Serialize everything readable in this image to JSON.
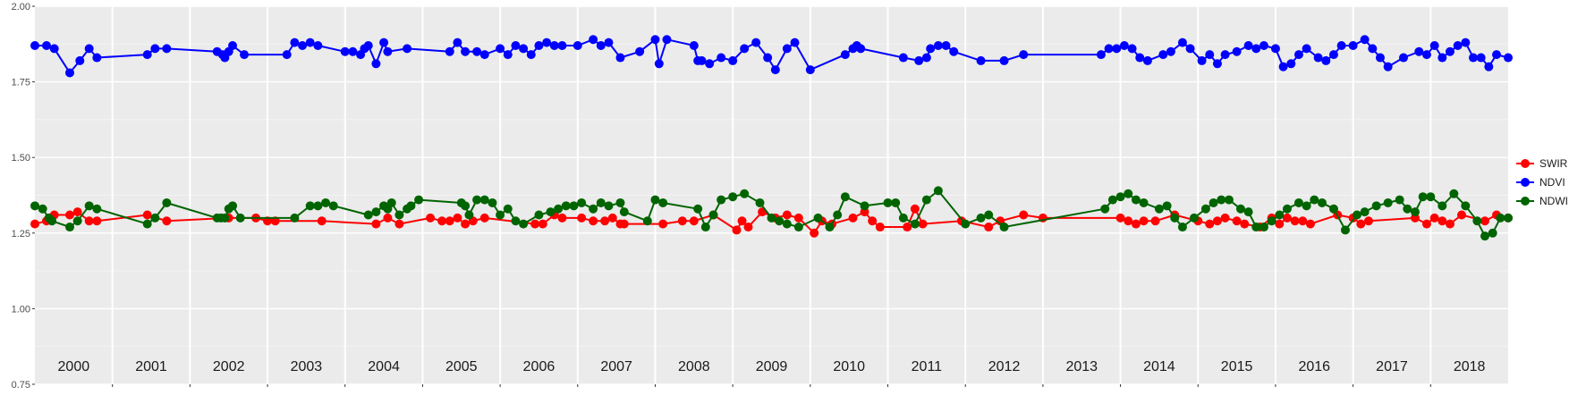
{
  "chart_data": {
    "type": "line",
    "title": "",
    "xlabel": "",
    "ylabel": "",
    "ylim": [
      0.75,
      2.0
    ],
    "xlim": [
      1999.5,
      2018.5
    ],
    "y_ticks": [
      "0.75",
      "1.00",
      "1.25",
      "1.50",
      "1.75",
      "2.00"
    ],
    "year_labels": [
      "2000",
      "2001",
      "2002",
      "2003",
      "2004",
      "2005",
      "2006",
      "2007",
      "2008",
      "2009",
      "2010",
      "2011",
      "2012",
      "2013",
      "2014",
      "2015",
      "2016",
      "2017",
      "2018"
    ],
    "grid": true,
    "legend_position": "right",
    "series": [
      {
        "name": "SWIR",
        "color": "#ff0000",
        "x": [
          1999.5,
          1999.65,
          1999.75,
          1999.95,
          2000.05,
          2000.2,
          2000.3,
          2000.95,
          2001.2,
          2002.0,
          2002.35,
          2002.5,
          2002.6,
          2003.2,
          2003.9,
          2004.05,
          2004.2,
          2004.6,
          2004.75,
          2004.85,
          2004.95,
          2005.05,
          2005.15,
          2005.3,
          2005.95,
          2006.05,
          2006.2,
          2006.3,
          2006.55,
          2006.7,
          2006.85,
          2006.95,
          2007.05,
          2007.1,
          2007.6,
          2007.85,
          2008.0,
          2008.25,
          2008.55,
          2008.62,
          2008.7,
          2008.88,
          2009.05,
          2009.2,
          2009.35,
          2009.55,
          2009.65,
          2009.78,
          2010.05,
          2010.2,
          2010.3,
          2010.4,
          2010.75,
          2010.85,
          2010.95,
          2011.45,
          2011.8,
          2011.95,
          2012.25,
          2012.5,
          2013.5,
          2013.6,
          2013.7,
          2013.8,
          2013.95,
          2014.2,
          2014.5,
          2014.65,
          2014.75,
          2014.85,
          2015.0,
          2015.1,
          2015.3,
          2015.45,
          2015.55,
          2015.65,
          2015.75,
          2015.85,
          2015.95,
          2016.3,
          2016.5,
          2016.6,
          2016.7,
          2017.3,
          2017.45,
          2017.55,
          2017.65,
          2017.75,
          2017.9,
          2018.2,
          2018.35,
          2018.5
        ],
        "values": [
          1.28,
          1.29,
          1.31,
          1.31,
          1.32,
          1.29,
          1.29,
          1.31,
          1.29,
          1.3,
          1.3,
          1.29,
          1.29,
          1.29,
          1.28,
          1.3,
          1.28,
          1.3,
          1.29,
          1.29,
          1.3,
          1.28,
          1.29,
          1.3,
          1.28,
          1.28,
          1.31,
          1.3,
          1.3,
          1.29,
          1.29,
          1.3,
          1.28,
          1.28,
          1.28,
          1.29,
          1.29,
          1.31,
          1.26,
          1.29,
          1.27,
          1.32,
          1.3,
          1.31,
          1.3,
          1.25,
          1.29,
          1.28,
          1.3,
          1.32,
          1.29,
          1.27,
          1.27,
          1.33,
          1.28,
          1.29,
          1.27,
          1.29,
          1.31,
          1.3,
          1.3,
          1.29,
          1.28,
          1.29,
          1.29,
          1.31,
          1.29,
          1.28,
          1.29,
          1.3,
          1.29,
          1.28,
          1.27,
          1.3,
          1.28,
          1.3,
          1.29,
          1.29,
          1.28,
          1.31,
          1.3,
          1.28,
          1.29,
          1.3,
          1.28,
          1.3,
          1.29,
          1.28,
          1.31,
          1.29,
          1.31,
          1.3
        ]
      },
      {
        "name": "NDVI",
        "color": "#0000ff",
        "x": [
          1999.5,
          1999.65,
          1999.75,
          1999.95,
          2000.08,
          2000.2,
          2000.3,
          2000.95,
          2001.05,
          2001.2,
          2001.85,
          2001.92,
          2001.95,
          2002.0,
          2002.05,
          2002.2,
          2002.75,
          2002.85,
          2002.95,
          2003.05,
          2003.15,
          2003.5,
          2003.6,
          2003.7,
          2003.75,
          2003.8,
          2003.9,
          2004.0,
          2004.05,
          2004.3,
          2004.85,
          2004.95,
          2005.05,
          2005.2,
          2005.3,
          2005.5,
          2005.6,
          2005.7,
          2005.8,
          2005.9,
          2006.0,
          2006.1,
          2006.2,
          2006.3,
          2006.5,
          2006.7,
          2006.8,
          2006.9,
          2007.05,
          2007.3,
          2007.5,
          2007.55,
          2007.65,
          2008.0,
          2008.05,
          2008.1,
          2008.2,
          2008.35,
          2008.5,
          2008.65,
          2008.8,
          2008.95,
          2009.05,
          2009.2,
          2009.3,
          2009.5,
          2009.95,
          2010.05,
          2010.1,
          2010.15,
          2010.7,
          2010.9,
          2011.0,
          2011.05,
          2011.15,
          2011.25,
          2011.35,
          2011.7,
          2012.0,
          2012.25,
          2013.25,
          2013.35,
          2013.45,
          2013.55,
          2013.65,
          2013.75,
          2013.85,
          2014.05,
          2014.15,
          2014.3,
          2014.4,
          2014.55,
          2014.65,
          2014.75,
          2014.85,
          2015.0,
          2015.15,
          2015.25,
          2015.35,
          2015.5,
          2015.6,
          2015.7,
          2015.8,
          2015.9,
          2016.05,
          2016.15,
          2016.25,
          2016.35,
          2016.5,
          2016.65,
          2016.75,
          2016.85,
          2016.95,
          2017.15,
          2017.35,
          2017.45,
          2017.55,
          2017.65,
          2017.75,
          2017.85,
          2017.95,
          2018.05,
          2018.15,
          2018.25,
          2018.35,
          2018.5
        ],
        "values": [
          1.87,
          1.87,
          1.86,
          1.78,
          1.82,
          1.86,
          1.83,
          1.84,
          1.86,
          1.86,
          1.85,
          1.84,
          1.83,
          1.85,
          1.87,
          1.84,
          1.84,
          1.88,
          1.87,
          1.88,
          1.87,
          1.85,
          1.85,
          1.84,
          1.86,
          1.87,
          1.81,
          1.88,
          1.85,
          1.86,
          1.85,
          1.88,
          1.85,
          1.85,
          1.84,
          1.86,
          1.84,
          1.87,
          1.86,
          1.84,
          1.87,
          1.88,
          1.87,
          1.87,
          1.87,
          1.89,
          1.87,
          1.88,
          1.83,
          1.85,
          1.89,
          1.81,
          1.89,
          1.87,
          1.82,
          1.82,
          1.81,
          1.83,
          1.82,
          1.86,
          1.88,
          1.83,
          1.79,
          1.86,
          1.88,
          1.79,
          1.84,
          1.86,
          1.87,
          1.86,
          1.83,
          1.82,
          1.83,
          1.86,
          1.87,
          1.87,
          1.85,
          1.82,
          1.82,
          1.84,
          1.84,
          1.86,
          1.86,
          1.87,
          1.86,
          1.83,
          1.82,
          1.84,
          1.85,
          1.88,
          1.86,
          1.82,
          1.84,
          1.81,
          1.84,
          1.85,
          1.87,
          1.86,
          1.87,
          1.86,
          1.8,
          1.81,
          1.84,
          1.86,
          1.83,
          1.82,
          1.84,
          1.87,
          1.87,
          1.89,
          1.86,
          1.83,
          1.8,
          1.83,
          1.85,
          1.84,
          1.87,
          1.83,
          1.85,
          1.87,
          1.88,
          1.83,
          1.83,
          1.8,
          1.84,
          1.83
        ]
      },
      {
        "name": "NDWI",
        "color": "#006400",
        "x": [
          1999.5,
          1999.6,
          1999.68,
          1999.72,
          1999.95,
          2000.05,
          2000.2,
          2000.3,
          2000.95,
          2001.05,
          2001.2,
          2001.85,
          2001.9,
          2001.95,
          2002.0,
          2002.05,
          2002.15,
          2002.85,
          2003.05,
          2003.15,
          2003.25,
          2003.35,
          2003.8,
          2003.9,
          2004.0,
          2004.05,
          2004.1,
          2004.2,
          2004.3,
          2004.35,
          2004.45,
          2005.0,
          2005.05,
          2005.1,
          2005.2,
          2005.3,
          2005.4,
          2005.5,
          2005.6,
          2005.7,
          2005.8,
          2006.0,
          2006.15,
          2006.25,
          2006.35,
          2006.45,
          2006.55,
          2006.7,
          2006.8,
          2006.9,
          2007.05,
          2007.1,
          2007.4,
          2007.5,
          2007.6,
          2008.05,
          2008.15,
          2008.25,
          2008.35,
          2008.5,
          2008.65,
          2008.85,
          2009.0,
          2009.1,
          2009.2,
          2009.35,
          2009.6,
          2009.75,
          2009.85,
          2009.95,
          2010.2,
          2010.5,
          2010.6,
          2010.7,
          2010.85,
          2011.0,
          2011.15,
          2011.5,
          2011.7,
          2011.8,
          2012.0,
          2013.3,
          2013.4,
          2013.5,
          2013.6,
          2013.7,
          2013.8,
          2014.0,
          2014.1,
          2014.2,
          2014.3,
          2014.45,
          2014.6,
          2014.7,
          2014.8,
          2014.9,
          2015.05,
          2015.15,
          2015.25,
          2015.35,
          2015.45,
          2015.55,
          2015.65,
          2015.8,
          2015.9,
          2016.0,
          2016.1,
          2016.25,
          2016.4,
          2016.55,
          2016.65,
          2016.8,
          2016.95,
          2017.1,
          2017.2,
          2017.3,
          2017.4,
          2017.5,
          2017.65,
          2017.8,
          2017.95,
          2018.1,
          2018.2,
          2018.3,
          2018.4,
          2018.5
        ],
        "values": [
          1.34,
          1.33,
          1.3,
          1.29,
          1.27,
          1.29,
          1.34,
          1.33,
          1.28,
          1.3,
          1.35,
          1.3,
          1.3,
          1.3,
          1.33,
          1.34,
          1.3,
          1.3,
          1.34,
          1.34,
          1.35,
          1.34,
          1.31,
          1.32,
          1.34,
          1.33,
          1.35,
          1.31,
          1.33,
          1.34,
          1.36,
          1.35,
          1.34,
          1.31,
          1.36,
          1.36,
          1.35,
          1.31,
          1.33,
          1.29,
          1.28,
          1.31,
          1.32,
          1.33,
          1.34,
          1.34,
          1.35,
          1.33,
          1.35,
          1.34,
          1.35,
          1.32,
          1.29,
          1.36,
          1.35,
          1.33,
          1.27,
          1.31,
          1.36,
          1.37,
          1.38,
          1.35,
          1.3,
          1.29,
          1.28,
          1.27,
          1.3,
          1.27,
          1.31,
          1.37,
          1.34,
          1.35,
          1.35,
          1.3,
          1.28,
          1.36,
          1.39,
          1.28,
          1.3,
          1.31,
          1.27,
          1.33,
          1.36,
          1.37,
          1.38,
          1.36,
          1.35,
          1.33,
          1.34,
          1.3,
          1.27,
          1.3,
          1.33,
          1.35,
          1.36,
          1.36,
          1.33,
          1.32,
          1.27,
          1.27,
          1.29,
          1.31,
          1.33,
          1.35,
          1.34,
          1.36,
          1.35,
          1.33,
          1.26,
          1.31,
          1.32,
          1.34,
          1.35,
          1.36,
          1.33,
          1.32,
          1.37,
          1.37,
          1.34,
          1.38,
          1.34,
          1.29,
          1.24,
          1.25,
          1.3,
          1.3
        ]
      }
    ]
  }
}
